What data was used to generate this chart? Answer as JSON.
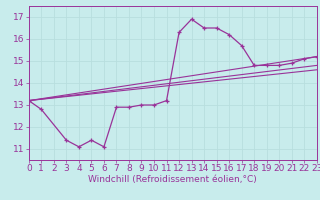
{
  "xlabel": "Windchill (Refroidissement éolien,°C)",
  "ylabel": "",
  "background_color": "#c8ecec",
  "line_color": "#993399",
  "grid_color": "#aadddd",
  "xlim": [
    0,
    23
  ],
  "ylim": [
    10.5,
    17.5
  ],
  "xticks": [
    0,
    1,
    2,
    3,
    4,
    5,
    6,
    7,
    8,
    9,
    10,
    11,
    12,
    13,
    14,
    15,
    16,
    17,
    18,
    19,
    20,
    21,
    22,
    23
  ],
  "yticks": [
    11,
    12,
    13,
    14,
    15,
    16,
    17
  ],
  "series": [
    [
      0,
      13.2
    ],
    [
      1,
      12.8
    ],
    [
      3,
      11.4
    ],
    [
      4,
      11.1
    ],
    [
      5,
      11.4
    ],
    [
      6,
      11.1
    ],
    [
      7,
      12.9
    ],
    [
      8,
      12.9
    ],
    [
      9,
      13.0
    ],
    [
      10,
      13.0
    ],
    [
      11,
      13.2
    ],
    [
      12,
      16.3
    ],
    [
      13,
      16.9
    ],
    [
      14,
      16.5
    ],
    [
      15,
      16.5
    ],
    [
      16,
      16.2
    ],
    [
      17,
      15.7
    ],
    [
      18,
      14.8
    ],
    [
      19,
      14.8
    ],
    [
      20,
      14.8
    ],
    [
      21,
      14.9
    ],
    [
      22,
      15.1
    ],
    [
      23,
      15.2
    ]
  ],
  "trend_lines": [
    [
      [
        0,
        13.2
      ],
      [
        23,
        15.2
      ]
    ],
    [
      [
        0,
        13.2
      ],
      [
        23,
        14.8
      ]
    ],
    [
      [
        0,
        13.2
      ],
      [
        23,
        14.6
      ]
    ]
  ],
  "font_size": 6.5
}
